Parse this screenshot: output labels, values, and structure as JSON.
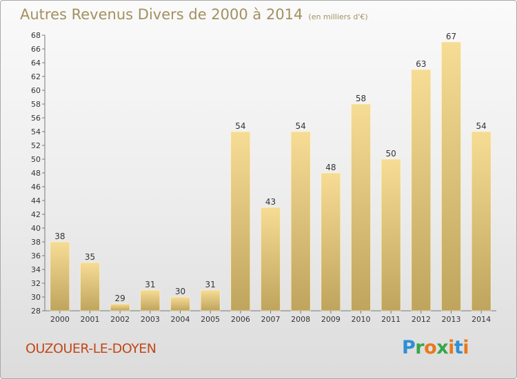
{
  "title": "Autres Revenus Divers de 2000 à 2014",
  "unit_note": "(en milliers d'€)",
  "location": "OUZOUER-LE-DOYEN",
  "logo": {
    "letters": [
      "P",
      "r",
      "o",
      "x",
      "i",
      "t",
      "i"
    ],
    "colors": [
      "#2d8fd6",
      "#35a64a",
      "#e8791e",
      "#35a64a",
      "#e8791e",
      "#2d8fd6",
      "#e8791e"
    ]
  },
  "colors": {
    "bar_light": "#f6dc94",
    "bar_dark": "#bfa45e",
    "title": "#a39060",
    "location": "#c2471a"
  },
  "chart_data": {
    "type": "bar",
    "title": "Autres Revenus Divers de 2000 à 2014",
    "categories": [
      "2000",
      "2001",
      "2002",
      "2003",
      "2004",
      "2005",
      "2006",
      "2007",
      "2008",
      "2009",
      "2010",
      "2011",
      "2012",
      "2013",
      "2014"
    ],
    "values": [
      38,
      35,
      29,
      31,
      30,
      31,
      54,
      43,
      54,
      48,
      58,
      50,
      63,
      67,
      54
    ],
    "ylim": [
      28,
      68
    ],
    "ytick_step": 2,
    "grid": false,
    "data_labels": true
  }
}
